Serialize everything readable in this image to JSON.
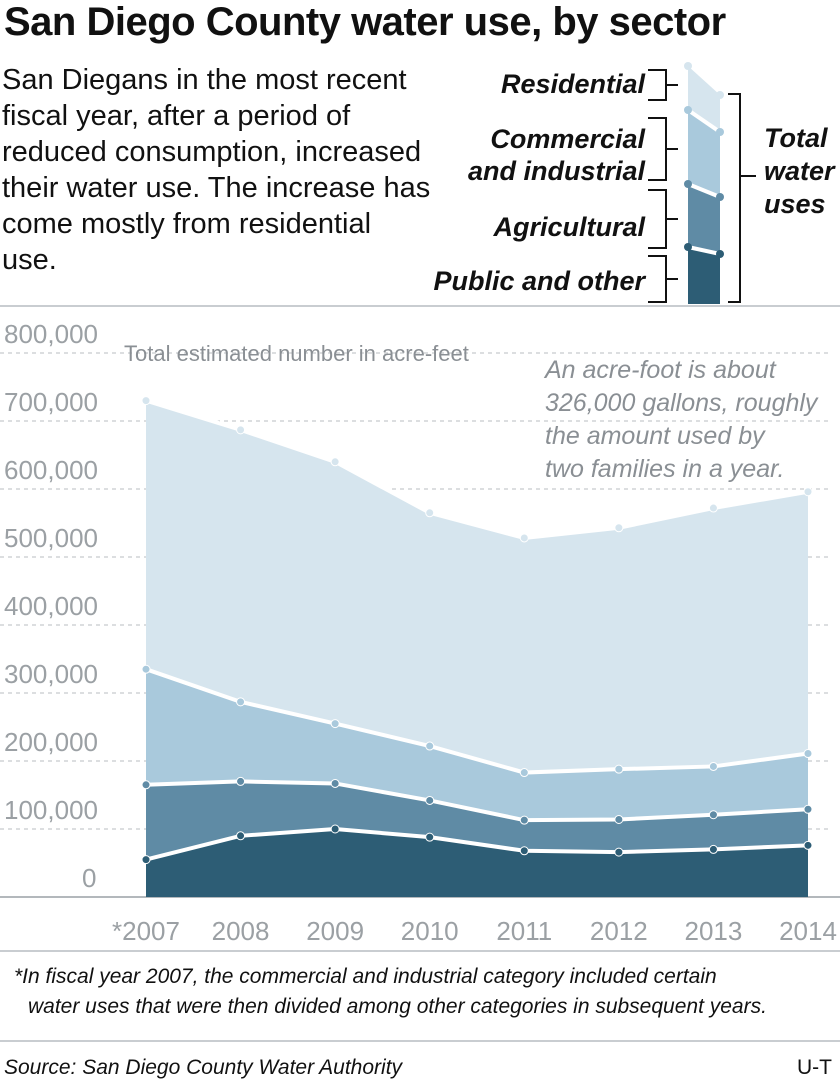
{
  "title": "San Diego County water use, by sector",
  "intro": "San Diegans in the most recent fiscal year, after a period of reduced consumption, increased their water use. The increase has come mostly from residential use.",
  "legend": {
    "items": [
      {
        "label_lines": [
          "Residential"
        ],
        "color": "#d6e5ee"
      },
      {
        "label_lines": [
          "Commercial",
          "and industrial"
        ],
        "color": "#a9c9dc"
      },
      {
        "label_lines": [
          "Agricultural"
        ],
        "color": "#5f8ba5"
      },
      {
        "label_lines": [
          "Public and other"
        ],
        "color": "#2d5d75"
      }
    ],
    "total_lines": [
      "Total",
      "water",
      "uses"
    ]
  },
  "chart_data": {
    "type": "area",
    "stacked": true,
    "ylabel": "Total estimated number in acre-feet",
    "ylim": [
      0,
      800000
    ],
    "yticks": [
      0,
      100000,
      200000,
      300000,
      400000,
      500000,
      600000,
      700000,
      800000
    ],
    "ytick_labels": [
      "0",
      "100,000",
      "200,000",
      "300,000",
      "400,000",
      "500,000",
      "600,000",
      "700,000",
      "800,000"
    ],
    "categories": [
      "*2007",
      "2008",
      "2009",
      "2010",
      "2011",
      "2012",
      "2013",
      "2014"
    ],
    "grid": true,
    "annotation": "An acre-foot is about 326,000 gallons, roughly the amount used by two families in a year.",
    "series": [
      {
        "name": "Public and other",
        "values": [
          55000,
          90000,
          100000,
          88000,
          68000,
          66000,
          70000,
          76000
        ],
        "color": "#2d5d75"
      },
      {
        "name": "Agricultural",
        "values": [
          110000,
          80000,
          67000,
          54000,
          45000,
          48000,
          51000,
          53000
        ],
        "color": "#5f8ba5"
      },
      {
        "name": "Commercial and industrial",
        "values": [
          170000,
          117000,
          88000,
          80000,
          70000,
          74000,
          71000,
          82000
        ],
        "color": "#a9c9dc"
      },
      {
        "name": "Residential",
        "values": [
          395000,
          400000,
          385000,
          343000,
          345000,
          355000,
          380000,
          385000
        ],
        "color": "#d6e5ee"
      }
    ]
  },
  "footnote_lines": [
    "*In fiscal year 2007, the commercial and industrial category included certain",
    "water uses that were then divided among other categories in subsequent years."
  ],
  "source": "Source: San Diego County Water Authority",
  "credit": "U-T"
}
